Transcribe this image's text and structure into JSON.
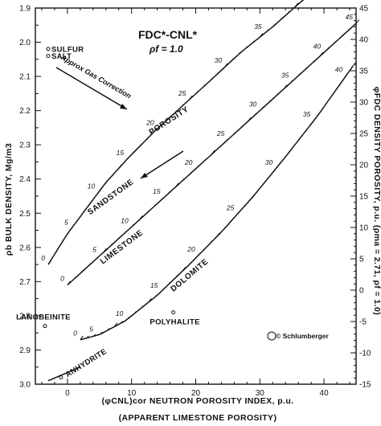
{
  "chart_data": {
    "type": "line",
    "title": "FDC*-CNL*",
    "subtitle": "ρf = 1.0",
    "xlabel": "(φCNL)cor NEUTRON POROSITY INDEX, p.u.",
    "xlabel_sub": "(APPARENT LIMESTONE POROSITY)",
    "ylabel": "ρb BULK DENSITY, Mg/m3",
    "y2label": "φFDC DENSITY POROSITY, p.u. (ρma = 2.71, ρf = 1.0)",
    "xlim": [
      -5,
      45
    ],
    "ylim": [
      1.9,
      3.0
    ],
    "y2lim": [
      -15,
      45
    ],
    "x_ticks": [
      "0",
      "10",
      "20",
      "30",
      "40"
    ],
    "y_ticks": [
      "1.9",
      "2.0",
      "2.1",
      "2.2",
      "2.3",
      "2.4",
      "2.5",
      "2.6",
      "2.7",
      "2.8",
      "2.9",
      "3.0"
    ],
    "y2_ticks": [
      "45",
      "40",
      "35",
      "30",
      "25",
      "20",
      "15",
      "10",
      "5",
      "0",
      "-5",
      "-10",
      "-15"
    ],
    "grid": false,
    "series": [
      {
        "name": "SANDSTONE",
        "x": [
          -3,
          0,
          3,
          6,
          9.5,
          13.5,
          18,
          22.5,
          27,
          32,
          36.5,
          41
        ],
        "y": [
          2.65,
          2.56,
          2.485,
          2.41,
          2.338,
          2.262,
          2.185,
          2.108,
          2.03,
          1.955,
          1.88,
          1.815
        ],
        "tick_labels": [
          "0",
          "5",
          "10",
          "15",
          "20",
          "25",
          "30",
          "35",
          "40"
        ],
        "tick_x": [
          -3,
          0.6,
          4.8,
          9.3,
          14,
          19,
          24.6,
          30.8,
          37
        ]
      },
      {
        "name": "LIMESTONE",
        "x": [
          0,
          5,
          10,
          15,
          20,
          25,
          30,
          35,
          40,
          45
        ],
        "y": [
          2.71,
          2.625,
          2.54,
          2.455,
          2.37,
          2.285,
          2.2,
          2.115,
          2.03,
          1.945
        ],
        "tick_labels": [
          "0",
          "5",
          "10",
          "15",
          "20",
          "25",
          "30",
          "35",
          "40",
          "45"
        ],
        "tick_x": [
          0,
          5,
          10,
          15,
          20,
          25,
          30,
          35,
          40,
          45
        ]
      },
      {
        "name": "DOLOMITE",
        "x": [
          2,
          5,
          9,
          14,
          19,
          24,
          29,
          34,
          39,
          44.5
        ],
        "y": [
          2.87,
          2.855,
          2.815,
          2.74,
          2.65,
          2.555,
          2.45,
          2.335,
          2.215,
          2.07
        ],
        "tick_labels": [
          "0",
          "5",
          "10",
          "15",
          "20",
          "25",
          "30",
          "35",
          "40"
        ],
        "tick_x": [
          2,
          4.5,
          9.2,
          14.6,
          20.4,
          26.5,
          32.5,
          38.4,
          43.4
        ]
      }
    ],
    "minerals": [
      {
        "name": "SULFUR",
        "x": -3,
        "y": 2.02
      },
      {
        "name": "SALT",
        "x": -3,
        "y": 2.04
      },
      {
        "name": "LANGBEINITE",
        "x": -3.5,
        "y": 2.83
      },
      {
        "name": "POLYHALITE",
        "x": 16.5,
        "y": 2.79
      },
      {
        "name": "ANHYDRITE",
        "x": -1,
        "y": 2.98
      }
    ],
    "annotations": [
      "POROSITY",
      "Approx Gas Correction",
      "© Schlumberger"
    ]
  }
}
